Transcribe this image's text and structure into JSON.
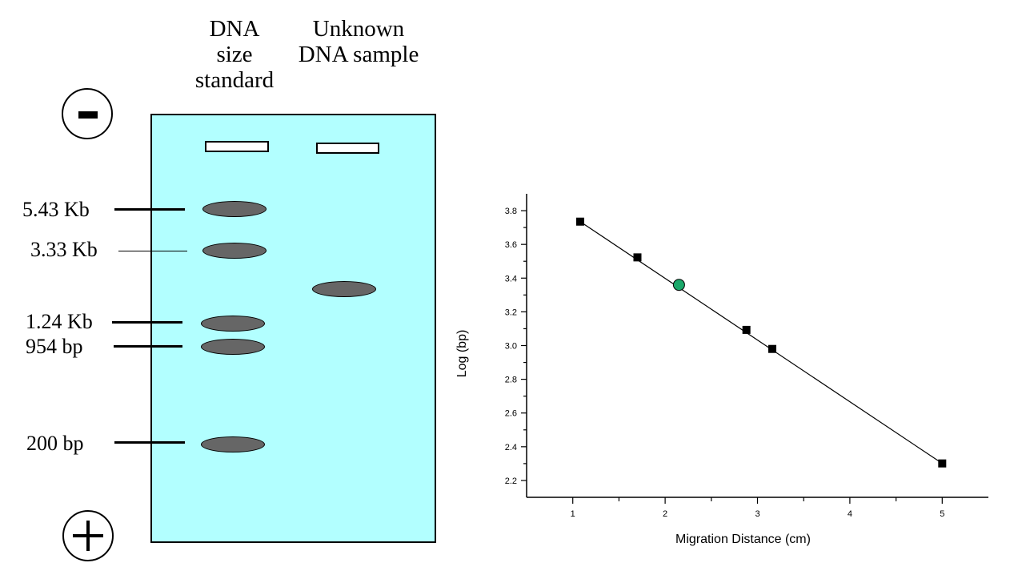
{
  "gel": {
    "lane_titles": {
      "standard": [
        "DNA",
        "size",
        "standard"
      ],
      "unknown": [
        "Unknown",
        "DNA sample"
      ]
    },
    "size_labels": [
      "5.43 Kb",
      "3.33 Kb",
      "1.24 Kb",
      "954 bp",
      "200 bp"
    ],
    "gel_color": "#b2ffff",
    "band_color": "#666666",
    "negative_pole_icon": "minus-icon",
    "positive_pole_icon": "plus-icon"
  },
  "chart_data": {
    "type": "scatter",
    "xlabel": "Migration Distance (cm)",
    "ylabel": "Log (bp)",
    "xlim": [
      0.5,
      5.5
    ],
    "ylim": [
      2.1,
      3.9
    ],
    "x_ticks": [
      1,
      2,
      3,
      4,
      5
    ],
    "y_ticks": [
      2.2,
      2.4,
      2.6,
      2.8,
      3.0,
      3.2,
      3.4,
      3.6,
      3.8
    ],
    "grid": false,
    "series": [
      {
        "marker": "square",
        "color": "#000000",
        "x": [
          1.08,
          1.7,
          2.88,
          3.16,
          5.0
        ],
        "y": [
          3.735,
          3.523,
          3.093,
          2.98,
          2.301
        ]
      },
      {
        "marker": "circle",
        "color": "#1aa86a",
        "x": [
          2.15
        ],
        "y": [
          3.36
        ]
      }
    ],
    "fit_line": {
      "x": [
        1.08,
        5.0
      ],
      "y": [
        3.735,
        2.301
      ]
    }
  }
}
